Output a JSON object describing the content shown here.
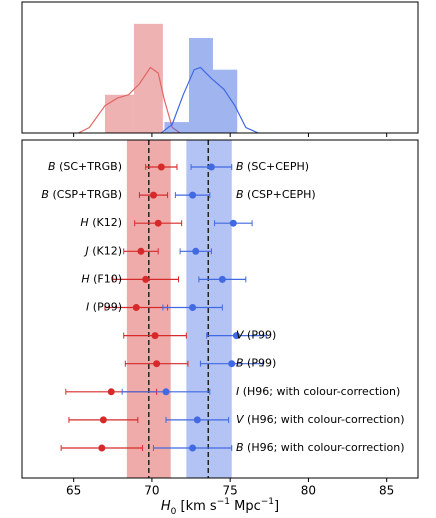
{
  "chart_data": [
    {
      "type": "histogram",
      "xlim": [
        61.7,
        87.0
      ],
      "ylim": [
        0,
        1.2
      ],
      "xticks": [
        65,
        70,
        75,
        80,
        85
      ],
      "series": [
        {
          "color": "#e06666",
          "bins": [
            67.0,
            68.85,
            70.7
          ],
          "values": [
            0.35,
            1.0
          ],
          "kde_x": [
            65.3,
            66,
            67,
            67.8,
            68.5,
            69.2,
            69.9,
            70.4,
            70.8,
            71.3,
            71.8
          ],
          "kde_y": [
            0,
            0.05,
            0.25,
            0.32,
            0.35,
            0.45,
            0.6,
            0.55,
            0.3,
            0.05,
            0
          ]
        },
        {
          "color": "#4169e1",
          "bins": [
            70.8,
            72.37,
            73.9,
            75.45
          ],
          "values": [
            0.1,
            0.87,
            0.58
          ],
          "kde_x": [
            70.6,
            71.3,
            72,
            72.7,
            73.1,
            73.8,
            74.6,
            75.3,
            76,
            76.8
          ],
          "kde_y": [
            0,
            0.08,
            0.35,
            0.58,
            0.6,
            0.5,
            0.4,
            0.25,
            0.05,
            0
          ]
        }
      ]
    },
    {
      "type": "forest",
      "xlim": [
        61.7,
        87.0
      ],
      "xticks": [
        65,
        70,
        75,
        80,
        85
      ],
      "xlabel": {
        "symbol": "H",
        "sub": "0",
        "unit": " [km s",
        "exp1": "−1",
        "unit2": " Mpc",
        "exp2": "−1",
        "close": "]"
      },
      "trgb_color": "#d62a2a",
      "ceph_color": "#4169e1",
      "trgb_band": [
        68.4,
        71.2
      ],
      "trgb_mean": 69.8,
      "ceph_band": [
        72.2,
        75.1
      ],
      "ceph_mean": 73.6,
      "rows": [
        {
          "trgb_label": {
            "band": "B",
            "text": " (SC+TRGB)"
          },
          "ceph_label": {
            "band": "B",
            "text": " (SC+CEPH)"
          },
          "trgb": {
            "value": 70.6,
            "error": 1.0
          },
          "ceph": {
            "value": 73.8,
            "error": 1.3
          }
        },
        {
          "trgb_label": {
            "band": "B",
            "text": " (CSP+TRGB)"
          },
          "ceph_label": {
            "band": "B",
            "text": " (CSP+CEPH)"
          },
          "trgb": {
            "value": 70.1,
            "error": 0.9
          },
          "ceph": {
            "value": 72.6,
            "error": 1.1
          }
        },
        {
          "trgb_label": {
            "band": "H",
            "text": " (K12)"
          },
          "trgb": {
            "value": 70.4,
            "error": 1.5
          },
          "ceph": {
            "value": 75.2,
            "error": 1.2
          }
        },
        {
          "trgb_label": {
            "band": "J",
            "text": " (K12)"
          },
          "trgb": {
            "value": 69.3,
            "error": 1.1
          },
          "ceph": {
            "value": 72.8,
            "error": 1.0
          }
        },
        {
          "trgb_label": {
            "band": "H",
            "text": " (F10)"
          },
          "trgb": {
            "value": 69.6,
            "error": 2.1
          },
          "ceph": {
            "value": 74.5,
            "error": 1.5
          }
        },
        {
          "trgb_label": {
            "band": "I",
            "text": " (P99)"
          },
          "trgb": {
            "value": 69.0,
            "error": 2.0
          },
          "ceph": {
            "value": 72.6,
            "error": 1.9
          }
        },
        {
          "ceph_label": {
            "band": "V",
            "text": " (P99)"
          },
          "trgb": {
            "value": 70.2,
            "error": 2.0
          },
          "ceph": {
            "value": 75.4,
            "error": 1.9
          }
        },
        {
          "ceph_label": {
            "band": "B",
            "text": " (P99)"
          },
          "trgb": {
            "value": 70.3,
            "error": 2.0
          },
          "ceph": {
            "value": 75.1,
            "error": 2.0
          }
        },
        {
          "ceph_label": {
            "band": "I",
            "text": " (H96; with colour-correction)"
          },
          "trgb": {
            "value": 67.4,
            "error": 2.9
          },
          "ceph": {
            "value": 70.9,
            "error": 2.8
          }
        },
        {
          "ceph_label": {
            "band": "V",
            "text": " (H96; with colour-correction)"
          },
          "trgb": {
            "value": 66.9,
            "error": 2.2
          },
          "ceph": {
            "value": 72.9,
            "error": 2.0
          }
        },
        {
          "ceph_label": {
            "band": "B",
            "text": " (H96; with colour-correction)"
          },
          "trgb": {
            "value": 66.8,
            "error": 2.6
          },
          "ceph": {
            "value": 72.6,
            "error": 2.5
          }
        }
      ]
    }
  ]
}
